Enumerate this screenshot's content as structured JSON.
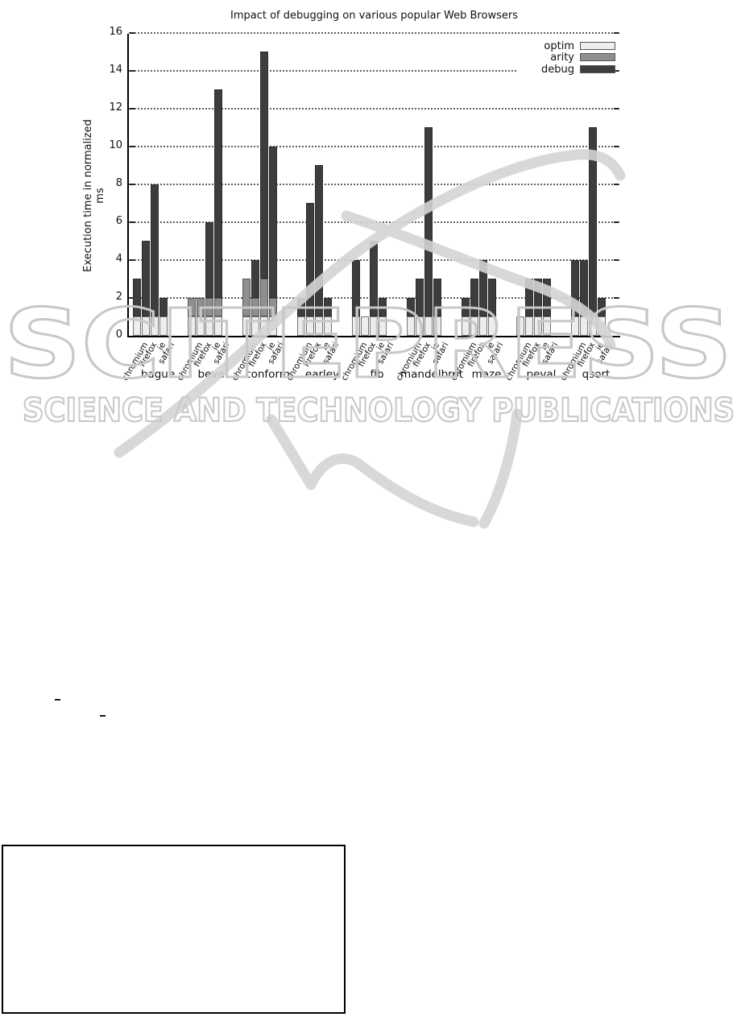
{
  "watermark": {
    "line1": "SCITEPRESS",
    "line2": "SCIENCE AND TECHNOLOGY PUBLICATIONS"
  },
  "page": {
    "stray_marks": [
      "-",
      "-"
    ]
  },
  "chart_data": {
    "type": "bar",
    "stacked": true,
    "title": "Impact of debugging on various popular Web Browsers",
    "xlabel": "",
    "ylabel": "Execution time in normalized ms",
    "ylim": [
      0,
      16
    ],
    "ytick_step": 2,
    "grid": "horizontal dotted",
    "legend_position": "top-right",
    "series": [
      "optim",
      "arity",
      "debug"
    ],
    "series_colors": {
      "optim": "#ededed",
      "arity": "#8f8f8f",
      "debug": "#3d3d3d"
    },
    "browsers": [
      "chromium",
      "firefox",
      "ie",
      "safari"
    ],
    "groups": [
      {
        "label": "bague",
        "bars": [
          {
            "browser": "chromium",
            "optim": 1,
            "arity": 0,
            "debug": 2,
            "total": 3
          },
          {
            "browser": "firefox",
            "optim": 1,
            "arity": 0,
            "debug": 4,
            "total": 5
          },
          {
            "browser": "ie",
            "optim": 1,
            "arity": 0,
            "debug": 7,
            "total": 8
          },
          {
            "browser": "safari",
            "optim": 1,
            "arity": 0,
            "debug": 1,
            "total": 2
          }
        ]
      },
      {
        "label": "beval",
        "bars": [
          {
            "browser": "chromium",
            "optim": 1,
            "arity": 1,
            "debug": 0,
            "total": 2
          },
          {
            "browser": "firefox",
            "optim": 1,
            "arity": 1,
            "debug": 0,
            "total": 2
          },
          {
            "browser": "ie",
            "optim": 1,
            "arity": 1,
            "debug": 4,
            "total": 6
          },
          {
            "browser": "safari",
            "optim": 1,
            "arity": 1,
            "debug": 11,
            "total": 13
          }
        ]
      },
      {
        "label": "conform",
        "bars": [
          {
            "browser": "chromium",
            "optim": 1,
            "arity": 2,
            "debug": 0,
            "total": 3
          },
          {
            "browser": "firefox",
            "optim": 1,
            "arity": 1,
            "debug": 2,
            "total": 4
          },
          {
            "browser": "ie",
            "optim": 1,
            "arity": 2,
            "debug": 12,
            "total": 15
          },
          {
            "browser": "safari",
            "optim": 1,
            "arity": 1,
            "debug": 8,
            "total": 10
          }
        ]
      },
      {
        "label": "earley",
        "bars": [
          {
            "browser": "chromium",
            "optim": 1,
            "arity": 0,
            "debug": 1,
            "total": 2
          },
          {
            "browser": "firefox",
            "optim": 1,
            "arity": 0,
            "debug": 6,
            "total": 7
          },
          {
            "browser": "ie",
            "optim": 1,
            "arity": 0,
            "debug": 8,
            "total": 9
          },
          {
            "browser": "safari",
            "optim": 1,
            "arity": 0,
            "debug": 1,
            "total": 2
          }
        ]
      },
      {
        "label": "fib",
        "bars": [
          {
            "browser": "chromium",
            "optim": 1,
            "arity": 0,
            "debug": 3,
            "total": 4
          },
          {
            "browser": "firefox",
            "optim": 1,
            "arity": 0,
            "debug": 0,
            "total": 1
          },
          {
            "browser": "ie",
            "optim": 1,
            "arity": 0,
            "debug": 4,
            "total": 5
          },
          {
            "browser": "safari",
            "optim": 1,
            "arity": 0,
            "debug": 1,
            "total": 2
          }
        ]
      },
      {
        "label": "mandelbrot",
        "bars": [
          {
            "browser": "chromium",
            "optim": 1,
            "arity": 0,
            "debug": 1,
            "total": 2
          },
          {
            "browser": "firefox",
            "optim": 1,
            "arity": 0,
            "debug": 2,
            "total": 3
          },
          {
            "browser": "ie",
            "optim": 1,
            "arity": 0,
            "debug": 10,
            "total": 11
          },
          {
            "browser": "safari",
            "optim": 1,
            "arity": 0,
            "debug": 2,
            "total": 3
          }
        ]
      },
      {
        "label": "maze",
        "bars": [
          {
            "browser": "chromium",
            "optim": 1,
            "arity": 0,
            "debug": 1,
            "total": 2
          },
          {
            "browser": "firefox",
            "optim": 1,
            "arity": 0,
            "debug": 2,
            "total": 3
          },
          {
            "browser": "ie",
            "optim": 1,
            "arity": 0,
            "debug": 3,
            "total": 4
          },
          {
            "browser": "safari",
            "optim": 1,
            "arity": 0,
            "debug": 2,
            "total": 3
          }
        ]
      },
      {
        "label": "peval",
        "bars": [
          {
            "browser": "chromium",
            "optim": 1,
            "arity": 0,
            "debug": 0,
            "total": 1
          },
          {
            "browser": "firefox",
            "optim": 1,
            "arity": 0,
            "debug": 2,
            "total": 3
          },
          {
            "browser": "ie",
            "optim": 1,
            "arity": 0,
            "debug": 2,
            "total": 3
          },
          {
            "browser": "safari",
            "optim": 1,
            "arity": 0,
            "debug": 2,
            "total": 3
          }
        ]
      },
      {
        "label": "qsort",
        "bars": [
          {
            "browser": "chromium",
            "optim": 1,
            "arity": 0,
            "debug": 3,
            "total": 4
          },
          {
            "browser": "firefox",
            "optim": 1,
            "arity": 0,
            "debug": 3,
            "total": 4
          },
          {
            "browser": "ie",
            "optim": 1,
            "arity": 0,
            "debug": 10,
            "total": 11
          },
          {
            "browser": "safari",
            "optim": 1,
            "arity": 0,
            "debug": 1,
            "total": 2
          }
        ]
      }
    ]
  }
}
